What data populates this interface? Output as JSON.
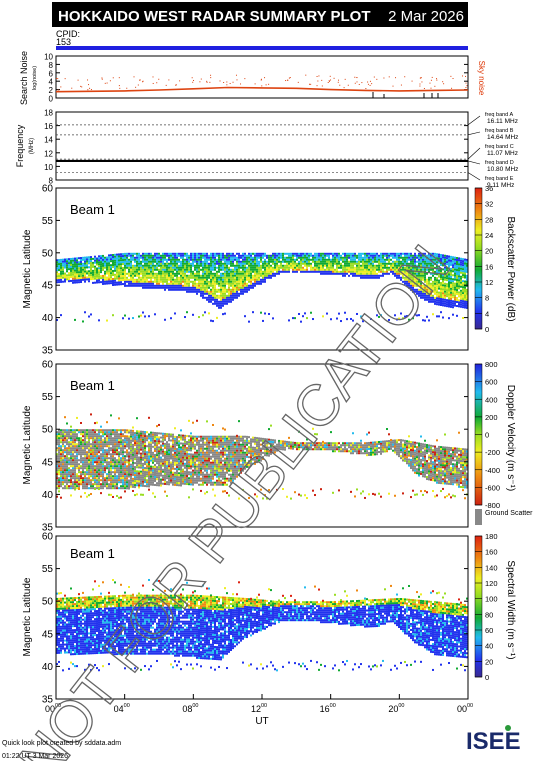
{
  "header": {
    "title": "HOKKAIDO WEST RADAR SUMMARY PLOT",
    "date": "2 Mar 2026",
    "cpid_label": "CPID:",
    "cpid_value": "153"
  },
  "footer": {
    "credit": "Quick look plot created by sddata.adm",
    "timestamp": "01:22 UT  3 Mar 2026",
    "logo_text": "ISEE",
    "watermark": "NOT FOR PUBLICATION"
  },
  "colors": {
    "cpid_bar": "#2020e0",
    "noise_line": "#dd4411",
    "sky_noise_label": "#dd3300",
    "ground_scatter": "#888888"
  },
  "chart_data": [
    {
      "type": "line",
      "panel": "noise",
      "ylabel": "Search Noise",
      "yunit": "log(noise)",
      "right_label": "Sky noise",
      "ylim": [
        0,
        10
      ],
      "yticks": [
        "0",
        "2",
        "4",
        "6",
        "8",
        "10"
      ],
      "x": [
        0,
        2,
        4,
        6,
        8,
        10,
        12,
        14,
        16,
        18,
        20,
        22,
        24
      ],
      "series": [
        {
          "name": "Sky noise",
          "values": [
            1.5,
            1.6,
            1.7,
            1.9,
            2.2,
            2.5,
            2.4,
            2.3,
            2.0,
            1.8,
            1.7,
            1.8,
            1.9
          ]
        }
      ]
    },
    {
      "type": "line",
      "panel": "frequency",
      "ylabel": "Frequency",
      "yunit": "(MHz)",
      "ylim": [
        8,
        18
      ],
      "yticks": [
        "8",
        "10",
        "12",
        "14",
        "16",
        "18"
      ],
      "x": [
        0,
        24
      ],
      "series": [
        {
          "values": [
            10.8,
            10.8
          ]
        }
      ],
      "freq_bands": [
        {
          "label": "freq band A",
          "value_label": "16.11 MHz",
          "value": 16.11
        },
        {
          "label": "freq band B",
          "value_label": "14.64 MHz",
          "value": 14.64
        },
        {
          "label": "freq band C",
          "value_label": "11.07 MHz",
          "value": 11.07
        },
        {
          "label": "freq band D",
          "value_label": "10.80 MHz",
          "value": 10.8
        },
        {
          "label": "freq band E",
          "value_label": "9.11 MHz",
          "value": 9.11
        }
      ]
    },
    {
      "type": "heatmap",
      "panel": "power",
      "beam_label": "Beam  1",
      "ylabel": "Magnetic Latitude",
      "ylim": [
        35,
        60
      ],
      "yticks": [
        "35",
        "40",
        "45",
        "50",
        "55",
        "60"
      ],
      "colorbar_label": "Backscatter Power (dB)",
      "colorbar_ticks": [
        "0",
        "4",
        "8",
        "12",
        "16",
        "20",
        "24",
        "28",
        "32",
        "36"
      ],
      "lower_edge": [
        [
          0,
          45.5
        ],
        [
          2,
          45.5
        ],
        [
          4,
          45
        ],
        [
          6,
          44.5
        ],
        [
          8,
          44
        ],
        [
          9.5,
          41.5
        ],
        [
          11,
          44
        ],
        [
          13,
          47
        ],
        [
          15,
          47
        ],
        [
          17,
          46.5
        ],
        [
          18.5,
          46
        ],
        [
          19.5,
          47
        ],
        [
          21,
          43.5
        ],
        [
          22,
          42
        ],
        [
          24,
          41.5
        ]
      ],
      "upper_edge": [
        [
          0,
          49
        ],
        [
          4,
          50
        ],
        [
          8,
          50
        ],
        [
          11,
          50
        ],
        [
          13,
          50
        ],
        [
          16,
          50
        ],
        [
          20,
          50
        ],
        [
          22,
          50
        ],
        [
          24,
          49
        ]
      ]
    },
    {
      "type": "heatmap",
      "panel": "velocity",
      "beam_label": "Beam  1",
      "ylabel": "Magnetic Latitude",
      "ylim": [
        35,
        60
      ],
      "yticks": [
        "35",
        "40",
        "45",
        "50",
        "55",
        "60"
      ],
      "colorbar_label": "Doppler Velocity (m s⁻¹)",
      "colorbar_ticks": [
        "-800",
        "-600",
        "-400",
        "-200",
        "0",
        "200",
        "400",
        "600",
        "800"
      ],
      "ground_scatter_label": "Ground Scatter",
      "lower_edge": [
        [
          0,
          41
        ],
        [
          2,
          41
        ],
        [
          4,
          41
        ],
        [
          6,
          41.5
        ],
        [
          8,
          41.5
        ],
        [
          10,
          41.5
        ],
        [
          11,
          44
        ],
        [
          13,
          47
        ],
        [
          15,
          47
        ],
        [
          17,
          46.5
        ],
        [
          18.5,
          46
        ],
        [
          19.5,
          47
        ],
        [
          21,
          43
        ],
        [
          22,
          42
        ],
        [
          24,
          41
        ]
      ],
      "upper_edge": [
        [
          0,
          50
        ],
        [
          4,
          50
        ],
        [
          8,
          49
        ],
        [
          11,
          49
        ],
        [
          14,
          48
        ],
        [
          16,
          48
        ],
        [
          18,
          48
        ],
        [
          20,
          48.5
        ],
        [
          22,
          47.5
        ],
        [
          24,
          47
        ]
      ]
    },
    {
      "type": "heatmap",
      "panel": "width",
      "beam_label": "Beam  1",
      "ylabel": "Magnetic Latitude",
      "ylim": [
        35,
        60
      ],
      "yticks": [
        "35",
        "40",
        "45",
        "50",
        "55",
        "60"
      ],
      "colorbar_label": "Spectral Width (m s⁻¹)",
      "colorbar_ticks": [
        "0",
        "20",
        "40",
        "60",
        "80",
        "100",
        "120",
        "140",
        "160",
        "180"
      ],
      "xlabel": "UT",
      "xlim": [
        0,
        24
      ],
      "xticks": [
        {
          "hour": "00",
          "min": "00"
        },
        {
          "hour": "04",
          "min": "00"
        },
        {
          "hour": "08",
          "min": "00"
        },
        {
          "hour": "12",
          "min": "00"
        },
        {
          "hour": "16",
          "min": "00"
        },
        {
          "hour": "20",
          "min": "00"
        },
        {
          "hour": "00",
          "min": "00"
        }
      ],
      "lower_edge": [
        [
          0,
          42
        ],
        [
          2,
          42
        ],
        [
          4,
          42
        ],
        [
          6,
          42
        ],
        [
          8,
          41.5
        ],
        [
          9.5,
          41
        ],
        [
          11,
          44.5
        ],
        [
          13,
          47
        ],
        [
          15,
          47
        ],
        [
          17,
          46.5
        ],
        [
          18.5,
          46
        ],
        [
          19.5,
          47
        ],
        [
          21,
          43.5
        ],
        [
          22,
          42
        ],
        [
          24,
          41.5
        ]
      ],
      "upper_edge": [
        [
          0,
          50.5
        ],
        [
          4,
          51
        ],
        [
          8,
          51
        ],
        [
          11,
          50.5
        ],
        [
          13,
          50
        ],
        [
          16,
          50
        ],
        [
          20,
          50.5
        ],
        [
          22,
          50
        ],
        [
          24,
          49.5
        ]
      ]
    }
  ]
}
